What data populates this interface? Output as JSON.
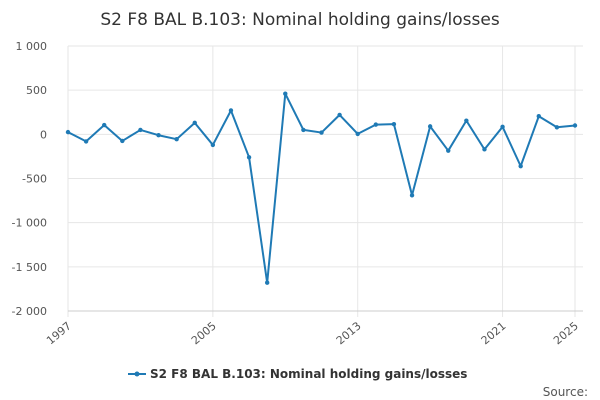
{
  "chart_data": {
    "type": "line",
    "title": "S2 F8 BAL B.103: Nominal holding gains/losses",
    "xlabel": "",
    "ylabel": "",
    "x": [
      1997,
      1998,
      1999,
      2000,
      2001,
      2002,
      2003,
      2004,
      2005,
      2006,
      2007,
      2008,
      2009,
      2010,
      2011,
      2012,
      2013,
      2014,
      2015,
      2016,
      2017,
      2018,
      2019,
      2020,
      2021,
      2022,
      2023,
      2024,
      2025
    ],
    "xlim": [
      1997,
      2025
    ],
    "ylim": [
      -2000,
      1000
    ],
    "y_ticks": [
      1000,
      500,
      0,
      -500,
      -1000,
      -1500,
      -2000
    ],
    "y_tick_labels": [
      "1 000",
      "500",
      "0",
      "-500",
      "-1 000",
      "-1 500",
      "-2 000"
    ],
    "x_ticks": [
      1997,
      2005,
      2013,
      2021,
      2025
    ],
    "x_tick_labels": [
      "1997",
      "2005",
      "2013",
      "2021",
      "2025"
    ],
    "series": [
      {
        "name": "S2 F8 BAL B.103: Nominal holding gains/losses",
        "color": "#1f7ab5",
        "values": [
          25,
          -80,
          105,
          -75,
          50,
          -10,
          -55,
          130,
          -120,
          270,
          -260,
          -1680,
          460,
          50,
          20,
          220,
          5,
          110,
          115,
          -690,
          90,
          -185,
          155,
          -170,
          85,
          -360,
          205,
          80,
          100
        ]
      }
    ],
    "legend_position": "bottom",
    "grid": true,
    "source_label": "Source:"
  }
}
